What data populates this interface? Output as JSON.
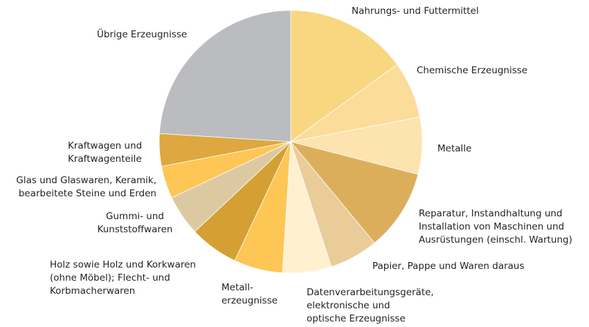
{
  "chart_data": {
    "type": "pie",
    "categories": [
      "Nahrungs- und Futtermittel",
      "Chemische Erzeugnisse",
      "Metalle",
      "Reparatur, Instandhaltung und\nInstallation von Maschinen und\nAusrüstungen (einschl. Wartung)",
      "Papier, Pappe und Waren daraus",
      "Datenverarbeitungsgeräte,\nelektronische und\noptische Erzeugnisse",
      "Metall-\nerzeugnisse",
      "Holz sowie Holz und Korkwaren\n(ohne Möbel); Flecht- und\nKorbmacherwaren",
      "Gummi- und\nKunststoffwaren",
      "Glas und Glaswaren, Keramik,\nbearbeitete Steine und Erden",
      "Kraftwagen und\nKraftwagenteile",
      "Übrige Erzeugnisse"
    ],
    "values": [
      15,
      7,
      7,
      10,
      6,
      6,
      6,
      6,
      5,
      4,
      4,
      24
    ],
    "colors": [
      "#f9d680",
      "#fbdc99",
      "#fde3ad",
      "#dcae5c",
      "#e9cc98",
      "#fff0cf",
      "#fdc655",
      "#d4a033",
      "#ddc9a1",
      "#fdc655",
      "#dea73f",
      "#babcc0"
    ]
  }
}
